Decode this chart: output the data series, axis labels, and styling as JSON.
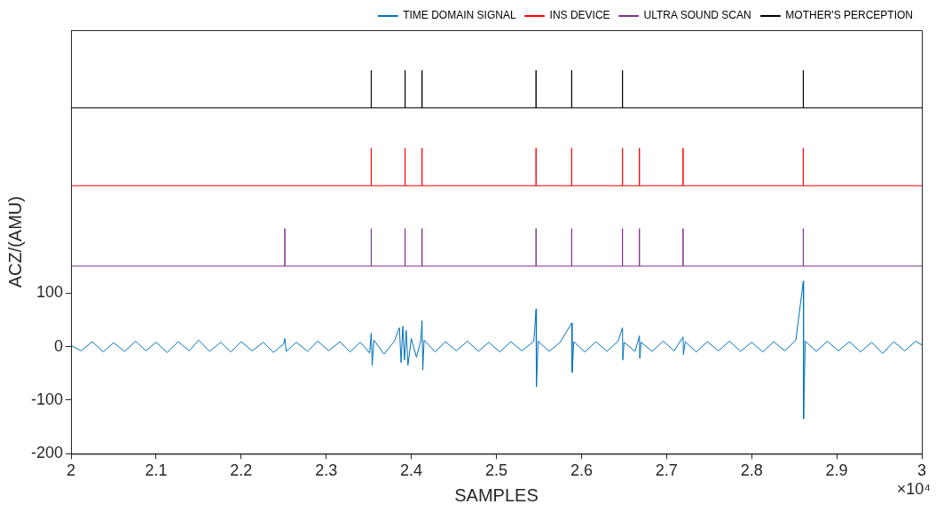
{
  "chart_data": {
    "type": "line",
    "xlabel": "SAMPLES",
    "ylabel": "ACZ/(AMU)",
    "annotations": [
      "×10⁴"
    ],
    "xlim": [
      2,
      3
    ],
    "xticks": [
      2,
      2.1,
      2.2,
      2.3,
      2.4,
      2.5,
      2.6,
      2.7,
      2.8,
      2.9,
      3
    ],
    "ylim": [
      -200,
      590
    ],
    "yticks": [
      -200,
      -100,
      0,
      100
    ],
    "grid": false,
    "legend": "top right",
    "marker": "none",
    "line_style": "solid",
    "series": [
      {
        "name": "TIME DOMAIN SIGNAL",
        "color": "#0072bd",
        "x": [
          2,
          2.012,
          2.025,
          2.038,
          2.05,
          2.063,
          2.076,
          2.088,
          2.1,
          2.113,
          2.126,
          2.139,
          2.15,
          2.163,
          2.176,
          2.188,
          2.2,
          2.213,
          2.226,
          2.238,
          2.25,
          2.2513,
          2.253,
          2.265,
          2.278,
          2.29,
          2.303,
          2.316,
          2.328,
          2.34,
          2.351,
          2.3529,
          2.354,
          2.356,
          2.368,
          2.38,
          2.386,
          2.388,
          2.39,
          2.392,
          2.394,
          2.396,
          2.4,
          2.406,
          2.411,
          2.4126,
          2.4135,
          2.415,
          2.428,
          2.44,
          2.453,
          2.466,
          2.479,
          2.491,
          2.504,
          2.517,
          2.53,
          2.544,
          2.5466,
          2.547,
          2.549,
          2.562,
          2.575,
          2.5885,
          2.589,
          2.591,
          2.604,
          2.617,
          2.63,
          2.643,
          2.6482,
          2.6486,
          2.65,
          2.663,
          2.6681,
          2.6685,
          2.67,
          2.683,
          2.696,
          2.709,
          2.7194,
          2.7198,
          2.722,
          2.735,
          2.748,
          2.761,
          2.774,
          2.787,
          2.8,
          2.813,
          2.826,
          2.839,
          2.852,
          2.8607,
          2.861,
          2.863,
          2.876,
          2.889,
          2.902,
          2.915,
          2.928,
          2.941,
          2.954,
          2.967,
          2.98,
          2.993,
          3
        ],
        "values": [
          2,
          -8,
          9,
          -10,
          7,
          -9,
          10,
          -8,
          8,
          -11,
          9,
          -8,
          12,
          -9,
          8,
          -10,
          9,
          -8,
          8,
          -11,
          5,
          15,
          -9,
          8,
          -9,
          10,
          -8,
          9,
          -10,
          8,
          -12,
          25,
          -35,
          12,
          -14,
          10,
          35,
          -30,
          38,
          -25,
          30,
          -35,
          15,
          -20,
          10,
          48,
          -44,
          12,
          -10,
          9,
          -8,
          10,
          -9,
          8,
          -10,
          9,
          -8,
          10,
          70,
          -75,
          10,
          -9,
          8,
          44,
          -48,
          9,
          -10,
          9,
          -9,
          10,
          35,
          -25,
          8,
          -9,
          20,
          -22,
          8,
          -9,
          10,
          -8,
          18,
          -15,
          9,
          -10,
          9,
          -8,
          10,
          -9,
          8,
          -10,
          9,
          -8,
          12,
          122,
          -135,
          10,
          -9,
          10,
          -8,
          9,
          -10,
          8,
          -13,
          9,
          -8,
          10,
          3
        ]
      },
      {
        "name": "INS DEVICE",
        "color": "#ff0000",
        "x": [
          2,
          2.3529,
          2.3529,
          2.3529,
          2.3927,
          2.3927,
          2.3927,
          2.4126,
          2.4126,
          2.4126,
          2.5466,
          2.5466,
          2.5466,
          2.5885,
          2.5885,
          2.5885,
          2.6482,
          2.6482,
          2.6482,
          2.6681,
          2.6681,
          2.6681,
          2.7194,
          2.7194,
          2.7194,
          2.8607,
          2.8607,
          2.8607,
          3
        ],
        "values": [
          300,
          300,
          370,
          300,
          300,
          370,
          300,
          300,
          370,
          300,
          300,
          370,
          300,
          300,
          370,
          300,
          300,
          370,
          300,
          300,
          370,
          300,
          300,
          370,
          300,
          300,
          370,
          300,
          300
        ]
      },
      {
        "name": "ULTRA SOUND SCAN",
        "color": "#7e2f8e",
        "x": [
          2,
          2.2513,
          2.2513,
          2.2513,
          2.3529,
          2.3529,
          2.3529,
          2.3927,
          2.3927,
          2.3927,
          2.4126,
          2.4126,
          2.4126,
          2.5466,
          2.5466,
          2.5466,
          2.5885,
          2.5885,
          2.5885,
          2.6482,
          2.6482,
          2.6482,
          2.6681,
          2.6681,
          2.6681,
          2.7194,
          2.7194,
          2.7194,
          2.8607,
          2.8607,
          2.8607,
          3
        ],
        "values": [
          150,
          150,
          220,
          150,
          150,
          220,
          150,
          150,
          220,
          150,
          150,
          220,
          150,
          150,
          220,
          150,
          150,
          220,
          150,
          150,
          220,
          150,
          150,
          220,
          150,
          150,
          220,
          150,
          150,
          220,
          150,
          150
        ]
      },
      {
        "name": "MOTHER'S PERCEPTION",
        "color": "#000000",
        "x": [
          2,
          2.3529,
          2.3529,
          2.3529,
          2.3927,
          2.3927,
          2.3927,
          2.4126,
          2.4126,
          2.4126,
          2.5466,
          2.5466,
          2.5466,
          2.5885,
          2.5885,
          2.5885,
          2.6482,
          2.6482,
          2.6482,
          2.8607,
          2.8607,
          2.8607,
          3
        ],
        "values": [
          445,
          445,
          515,
          445,
          445,
          515,
          445,
          445,
          515,
          445,
          445,
          515,
          445,
          445,
          515,
          445,
          445,
          515,
          445,
          445,
          515,
          445,
          445
        ]
      }
    ]
  }
}
